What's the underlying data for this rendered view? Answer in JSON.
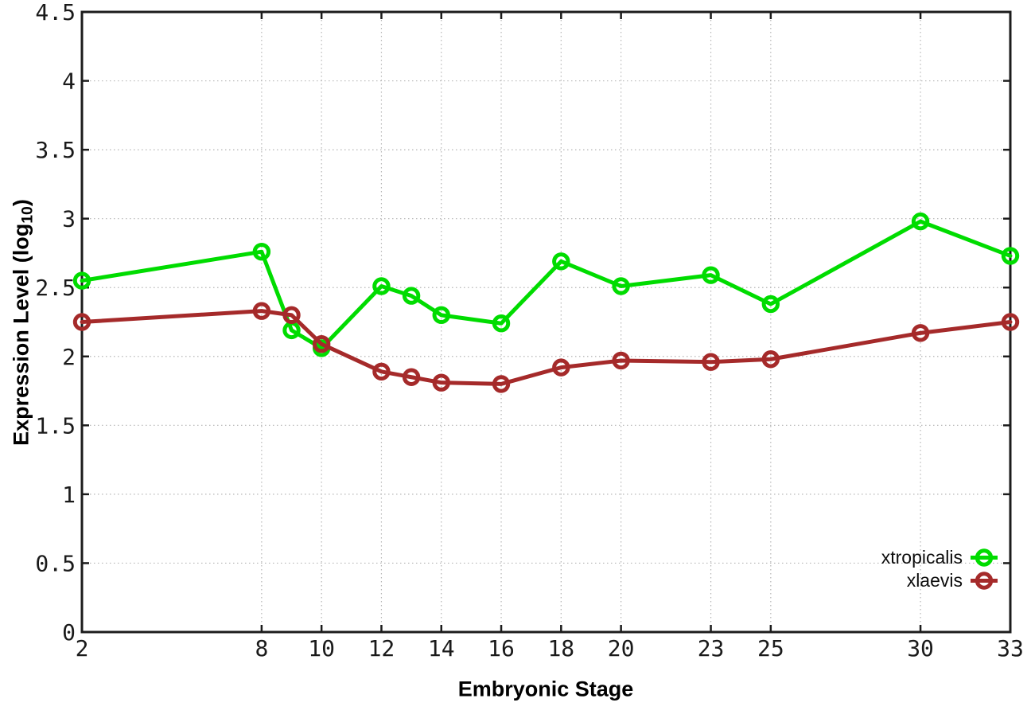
{
  "chart_data": {
    "type": "line",
    "title": "",
    "xlabel": "Embryonic Stage",
    "ylabel": "Expression Level (log10)",
    "xlim": [
      2,
      33
    ],
    "ylim": [
      0,
      4.5
    ],
    "grid": true,
    "legend_position": "bottom-right-inside",
    "x": [
      2,
      8,
      9,
      10,
      12,
      13,
      14,
      16,
      18,
      20,
      23,
      25,
      30,
      33
    ],
    "xticks": [
      2,
      8,
      10,
      12,
      14,
      16,
      18,
      20,
      23,
      25,
      30,
      33
    ],
    "xtick_labels": [
      "2",
      "8",
      "10",
      "12",
      "14",
      "16",
      "18",
      "20",
      "23",
      "25",
      "30",
      "33"
    ],
    "yticks": [
      0,
      0.5,
      1,
      1.5,
      2,
      2.5,
      3,
      3.5,
      4,
      4.5
    ],
    "ytick_labels": [
      "0",
      "0.5",
      "1",
      "1.5",
      "2",
      "2.5",
      "3",
      "3.5",
      "4",
      "4.5"
    ],
    "series": [
      {
        "name": "xtropicalis",
        "color": "#00dc00",
        "marker": "open-circle",
        "values": [
          2.55,
          2.76,
          2.19,
          2.06,
          2.51,
          2.44,
          2.3,
          2.24,
          2.69,
          2.51,
          2.59,
          2.38,
          2.98,
          2.73
        ]
      },
      {
        "name": "xlaevis",
        "color": "#a52a2a",
        "marker": "open-circle",
        "values": [
          2.25,
          2.33,
          2.3,
          2.09,
          1.89,
          1.85,
          1.81,
          1.8,
          1.92,
          1.97,
          1.96,
          1.98,
          2.17,
          2.25
        ]
      }
    ]
  },
  "labels": {
    "ylabel_main": "Expression Level (log",
    "ylabel_sub": "10",
    "ylabel_close": ")"
  },
  "style": {
    "axis_color": "#1c1c1c",
    "grid_color": "#b5b5b5",
    "background": "#ffffff"
  }
}
